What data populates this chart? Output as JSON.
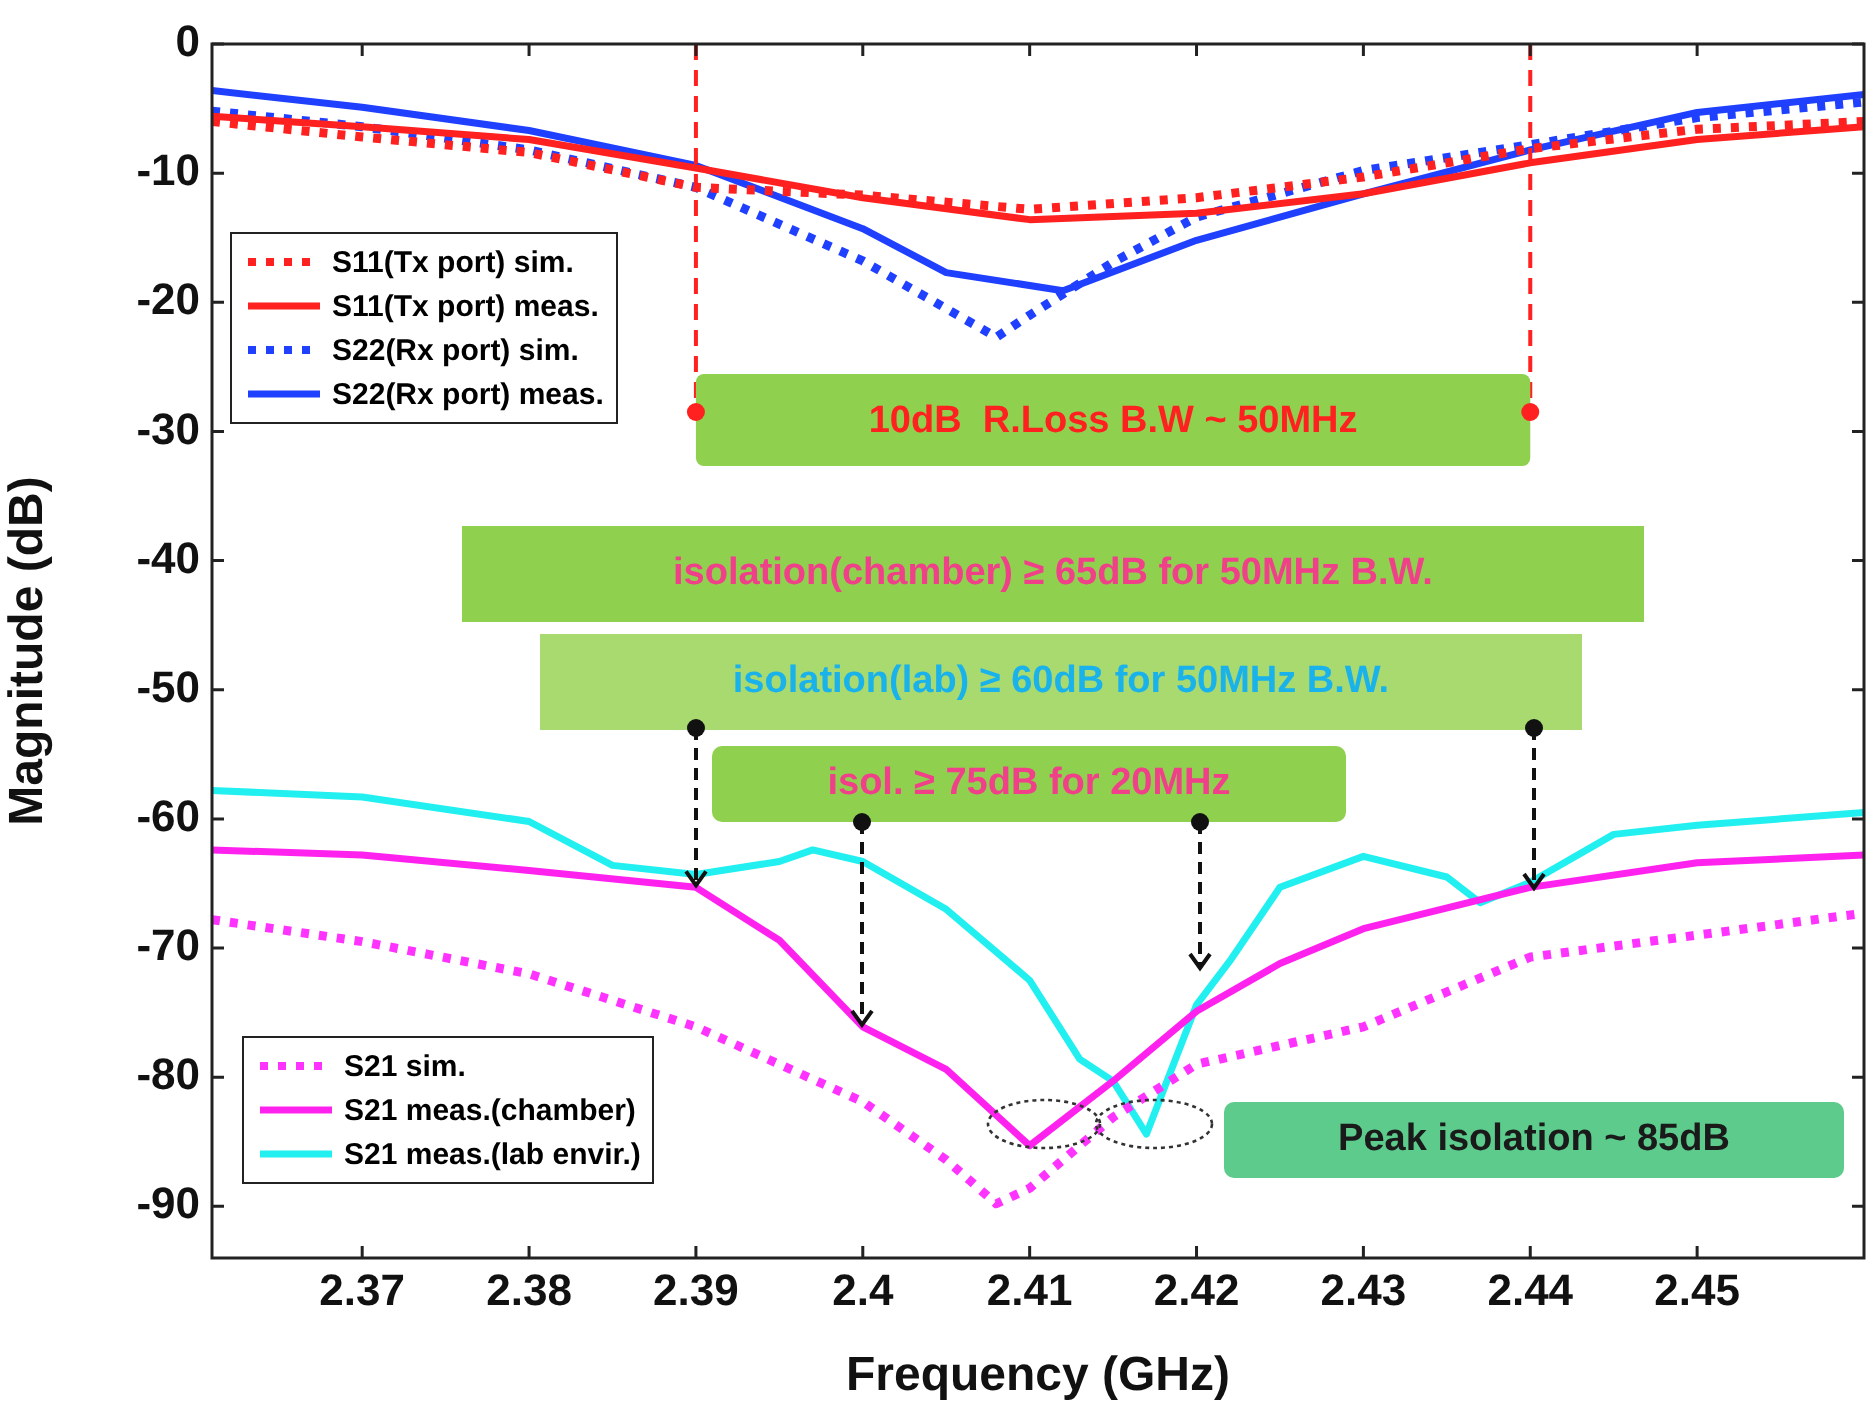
{
  "chart_data": {
    "type": "line",
    "xlabel": "Frequency (GHz)",
    "ylabel": "Magnitude (dB)",
    "xlim": [
      2.361,
      2.46
    ],
    "xticks": [
      2.37,
      2.38,
      2.39,
      2.4,
      2.41,
      2.42,
      2.43,
      2.44,
      2.45
    ],
    "ylim": [
      -94,
      0
    ],
    "yticks": [
      0,
      -10,
      -20,
      -30,
      -40,
      -50,
      -60,
      -70,
      -80,
      -90
    ],
    "grid": false,
    "legend": "left",
    "series": [
      {
        "name": "S11(Tx port) sim.",
        "color": "#ff2020",
        "line_style": "dotted",
        "x": [
          2.361,
          2.37,
          2.38,
          2.39,
          2.4,
          2.41,
          2.42,
          2.43,
          2.44,
          2.45,
          2.46
        ],
        "values": [
          -6.0,
          -7.2,
          -8.4,
          -11.1,
          -11.7,
          -12.8,
          -11.9,
          -10.3,
          -8.1,
          -6.6,
          -6.0
        ]
      },
      {
        "name": "S11(Tx port) meas.",
        "color": "#ff2020",
        "line_style": "solid",
        "x": [
          2.361,
          2.37,
          2.38,
          2.39,
          2.4,
          2.41,
          2.42,
          2.43,
          2.44,
          2.45,
          2.46
        ],
        "values": [
          -5.6,
          -6.4,
          -7.4,
          -9.6,
          -11.9,
          -13.6,
          -13.1,
          -11.6,
          -9.2,
          -7.4,
          -6.4
        ]
      },
      {
        "name": "S22(Rx port) sim.",
        "color": "#2040ff",
        "line_style": "dotted",
        "x": [
          2.361,
          2.37,
          2.38,
          2.39,
          2.4,
          2.408,
          2.41,
          2.415,
          2.42,
          2.43,
          2.44,
          2.45,
          2.46
        ],
        "values": [
          -5.2,
          -6.4,
          -8.2,
          -11.1,
          -16.8,
          -22.7,
          -21.0,
          -16.9,
          -13.4,
          -9.8,
          -7.8,
          -5.7,
          -4.5
        ]
      },
      {
        "name": "S22(Rx port) meas.",
        "color": "#2040ff",
        "line_style": "solid",
        "x": [
          2.361,
          2.37,
          2.38,
          2.39,
          2.4,
          2.405,
          2.412,
          2.42,
          2.43,
          2.44,
          2.45,
          2.46
        ],
        "values": [
          -3.6,
          -4.9,
          -6.7,
          -9.4,
          -14.3,
          -17.7,
          -19.1,
          -15.2,
          -11.6,
          -8.2,
          -5.3,
          -3.9
        ]
      },
      {
        "name": "S21 sim.",
        "color": "#ff33ff",
        "line_style": "dotted",
        "x": [
          2.361,
          2.37,
          2.38,
          2.39,
          2.4,
          2.405,
          2.408,
          2.41,
          2.415,
          2.42,
          2.43,
          2.44,
          2.45,
          2.46
        ],
        "values": [
          -67.8,
          -69.5,
          -72.0,
          -76.1,
          -81.9,
          -86.4,
          -89.8,
          -88.6,
          -83.1,
          -79.0,
          -76.1,
          -70.7,
          -69.0,
          -67.3
        ]
      },
      {
        "name": "S21 meas.(chamber)",
        "color": "#ff22ee",
        "line_style": "solid",
        "x": [
          2.361,
          2.37,
          2.38,
          2.39,
          2.395,
          2.4,
          2.405,
          2.41,
          2.415,
          2.42,
          2.425,
          2.43,
          2.44,
          2.45,
          2.46
        ],
        "values": [
          -62.4,
          -62.8,
          -64.0,
          -65.3,
          -69.4,
          -76.1,
          -79.4,
          -85.3,
          -80.3,
          -74.9,
          -71.2,
          -68.5,
          -65.3,
          -63.4,
          -62.8
        ]
      },
      {
        "name": "S21 meas.(lab envir.)",
        "color": "#22f0f0",
        "line_style": "solid",
        "x": [
          2.361,
          2.37,
          2.38,
          2.385,
          2.39,
          2.395,
          2.397,
          2.4,
          2.405,
          2.41,
          2.413,
          2.415,
          2.417,
          2.42,
          2.422,
          2.425,
          2.43,
          2.435,
          2.437,
          2.44,
          2.445,
          2.45,
          2.46
        ],
        "values": [
          -57.8,
          -58.3,
          -60.2,
          -63.6,
          -64.3,
          -63.3,
          -62.4,
          -63.3,
          -67.0,
          -72.5,
          -78.6,
          -80.3,
          -84.4,
          -74.4,
          -71.0,
          -65.3,
          -62.9,
          -64.5,
          -66.5,
          -64.9,
          -61.2,
          -60.5,
          -59.5
        ]
      }
    ],
    "bands": [
      {
        "axis": "x",
        "from": 2.39,
        "to": 2.44,
        "label": "10dB  R.Loss B.W ~ 50MHz",
        "color": "#8fd14f"
      }
    ],
    "annotations": [
      "isolation(chamber)  ≥  65dB for 50MHz B.W.",
      {
        "text": "isolation(lab)  ≥  60dB for 50MHz B.W.",
        "x": 2.39,
        "y": -65.3
      },
      {
        "text": "isol.  ≥ 75dB for 20MHz",
        "x": 2.4,
        "y": -76.1
      },
      "Peak isolation ~ 85dB"
    ]
  }
}
